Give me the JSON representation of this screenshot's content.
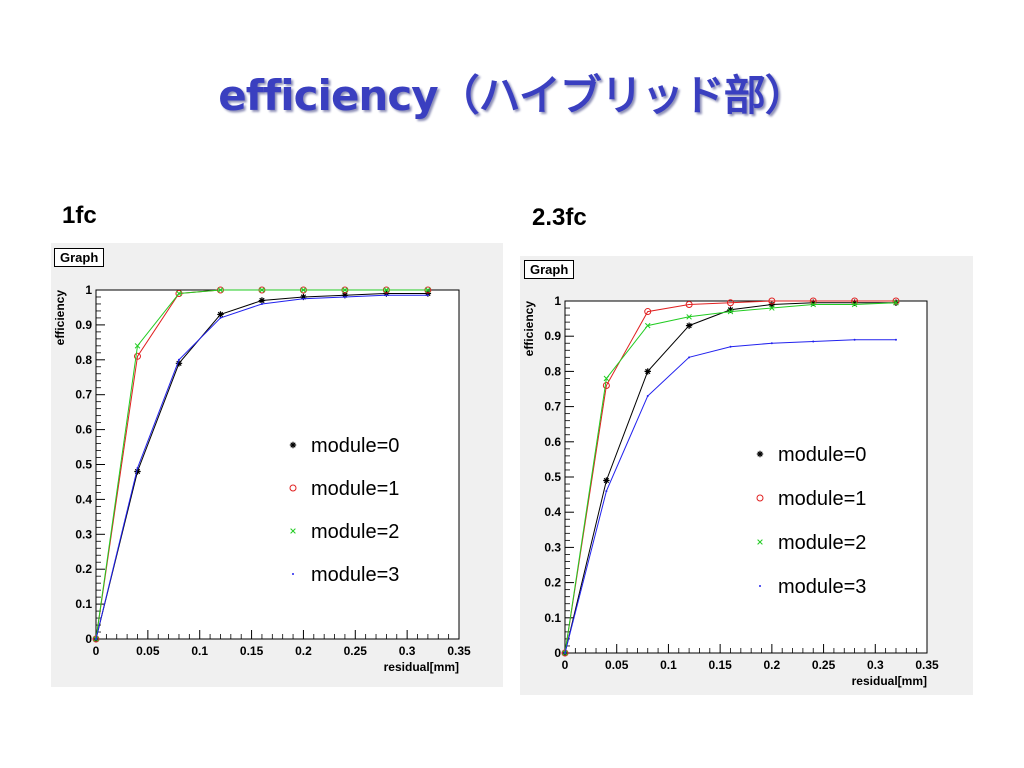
{
  "slide": {
    "title": "efficiency（ハイブリッド部）",
    "title_color": "#3a3fc0"
  },
  "panels": [
    {
      "label": "1fc",
      "graph_box": "Graph"
    },
    {
      "label": "2.3fc",
      "graph_box": "Graph"
    }
  ],
  "chart_data": [
    {
      "type": "line",
      "title": "Graph",
      "xlabel": "residual[mm]",
      "ylabel": "efficiency",
      "xlim": [
        0,
        0.35
      ],
      "ylim": [
        0,
        1
      ],
      "x_ticks": [
        0,
        0.05,
        0.1,
        0.15,
        0.2,
        0.25,
        0.3,
        0.35
      ],
      "x_tick_labels": [
        "0",
        "0.05",
        "0.1",
        "0.15",
        "0.2",
        "0.25",
        "0.3",
        "0.35"
      ],
      "y_ticks": [
        0,
        0.1,
        0.2,
        0.3,
        0.4,
        0.5,
        0.6,
        0.7,
        0.8,
        0.9,
        1
      ],
      "y_tick_labels": [
        "0",
        "0.1",
        "0.2",
        "0.3",
        "0.4",
        "0.5",
        "0.6",
        "0.7",
        "0.8",
        "0.9",
        "1"
      ],
      "legend_position": "center-right",
      "x": [
        0,
        0.04,
        0.08,
        0.12,
        0.16,
        0.2,
        0.24,
        0.28,
        0.32
      ],
      "series": [
        {
          "name": "module=0",
          "marker": "*",
          "color": "#000000",
          "values": [
            0.0,
            0.48,
            0.79,
            0.93,
            0.97,
            0.98,
            0.985,
            0.99,
            0.99
          ]
        },
        {
          "name": "module=1",
          "marker": "o",
          "color": "#e02020",
          "values": [
            0.0,
            0.81,
            0.99,
            1.0,
            1.0,
            1.0,
            1.0,
            1.0,
            1.0
          ]
        },
        {
          "name": "module=2",
          "marker": "x",
          "color": "#22cc22",
          "values": [
            0.0,
            0.84,
            0.99,
            1.0,
            1.0,
            1.0,
            1.0,
            1.0,
            1.0
          ]
        },
        {
          "name": "module=3",
          "marker": ".",
          "color": "#2222ee",
          "values": [
            0.0,
            0.49,
            0.8,
            0.92,
            0.96,
            0.975,
            0.98,
            0.985,
            0.985
          ]
        }
      ]
    },
    {
      "type": "line",
      "title": "Graph",
      "xlabel": "residual[mm]",
      "ylabel": "efficiency",
      "xlim": [
        0,
        0.35
      ],
      "ylim": [
        0,
        1
      ],
      "x_ticks": [
        0,
        0.05,
        0.1,
        0.15,
        0.2,
        0.25,
        0.3,
        0.35
      ],
      "x_tick_labels": [
        "0",
        "0.05",
        "0.1",
        "0.15",
        "0.2",
        "0.25",
        "0.3",
        "0.35"
      ],
      "y_ticks": [
        0,
        0.1,
        0.2,
        0.3,
        0.4,
        0.5,
        0.6,
        0.7,
        0.8,
        0.9,
        1
      ],
      "y_tick_labels": [
        "0",
        "0.1",
        "0.2",
        "0.3",
        "0.4",
        "0.5",
        "0.6",
        "0.7",
        "0.8",
        "0.9",
        "1"
      ],
      "legend_position": "center-right",
      "x": [
        0,
        0.04,
        0.08,
        0.12,
        0.16,
        0.2,
        0.24,
        0.28,
        0.32
      ],
      "series": [
        {
          "name": "module=0",
          "marker": "*",
          "color": "#000000",
          "values": [
            0.0,
            0.49,
            0.8,
            0.93,
            0.975,
            0.99,
            0.995,
            0.995,
            0.995
          ]
        },
        {
          "name": "module=1",
          "marker": "o",
          "color": "#e02020",
          "values": [
            0.0,
            0.76,
            0.97,
            0.99,
            0.995,
            1.0,
            1.0,
            1.0,
            1.0
          ]
        },
        {
          "name": "module=2",
          "marker": "x",
          "color": "#22cc22",
          "values": [
            0.0,
            0.78,
            0.93,
            0.955,
            0.97,
            0.98,
            0.99,
            0.99,
            0.995
          ]
        },
        {
          "name": "module=3",
          "marker": ".",
          "color": "#2222ee",
          "values": [
            0.0,
            0.46,
            0.73,
            0.84,
            0.87,
            0.88,
            0.885,
            0.89,
            0.89
          ]
        }
      ]
    }
  ]
}
